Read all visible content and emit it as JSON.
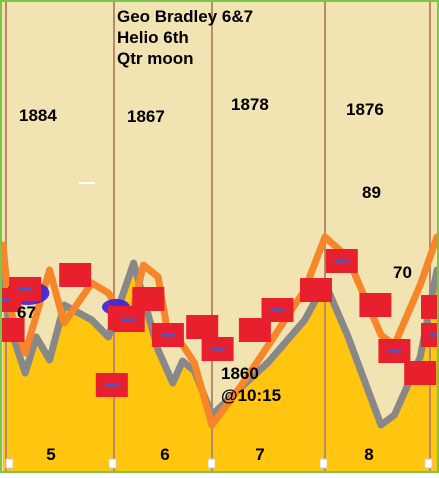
{
  "header": {
    "line1": "Geo Bradley 6&7",
    "line2": "Helio 6th",
    "line3": "Qtr moon"
  },
  "colors": {
    "sky": "#f2e4b2",
    "fill": "#ffc50f",
    "gray_line": "#888888",
    "orange_line": "#f7862a",
    "marker": "#e81f2c",
    "marker_dash": "#4b57c9",
    "purple_blob": "#3a1fe0",
    "divider": "#b98a6a",
    "frame": "#7ac64b"
  },
  "chart_data": {
    "type": "line",
    "title": "",
    "categories": [
      "5",
      "6",
      "7",
      "8"
    ],
    "period_labels": [
      "1884",
      "1867",
      "1878",
      "1876"
    ],
    "annotations": [
      {
        "label": "67"
      },
      {
        "label": "1860"
      },
      {
        "label": "@10:15"
      },
      {
        "label": "89"
      },
      {
        "label": "70"
      }
    ],
    "series": [
      {
        "x": [
          0.0,
          0.05,
          0.2,
          0.3,
          0.42,
          0.55,
          0.8,
          0.95,
          1.2,
          1.45,
          1.6,
          1.7,
          1.82,
          2.0,
          2.25,
          2.5,
          2.82,
          3.0,
          3.2,
          3.5,
          3.62,
          3.85,
          4.0
        ],
        "values": [
          2,
          -58,
          -108,
          -72,
          -95,
          -40,
          -55,
          -72,
          2,
          -85,
          -118,
          -96,
          -106,
          -150,
          -123,
          -97,
          -55,
          -18,
          -70,
          -160,
          -150,
          -92,
          -5
        ]
      },
      {
        "x": [
          0.0,
          0.05,
          0.2,
          0.42,
          0.55,
          0.8,
          0.95,
          1.15,
          1.3,
          1.45,
          1.55,
          1.7,
          1.82,
          2.0,
          2.25,
          2.5,
          2.82,
          3.0,
          3.2,
          3.5,
          3.62,
          3.85,
          4.0
        ],
        "values": [
          20,
          -40,
          -88,
          -5,
          -58,
          -18,
          -28,
          -62,
          0,
          -12,
          -68,
          -80,
          -98,
          -160,
          -122,
          -80,
          -25,
          28,
          8,
          -70,
          -80,
          -20,
          28
        ]
      }
    ],
    "markers": [
      {
        "x": 0.02,
        "y": -35
      },
      {
        "x": 0.05,
        "y": -65
      },
      {
        "x": 0.2,
        "y": -24
      },
      {
        "x": 0.65,
        "y": -10
      },
      {
        "x": 0.98,
        "y": -120
      },
      {
        "x": 1.1,
        "y": -53
      },
      {
        "x": 1.15,
        "y": -55
      },
      {
        "x": 1.35,
        "y": -34
      },
      {
        "x": 1.55,
        "y": -70
      },
      {
        "x": 1.9,
        "y": -62
      },
      {
        "x": 2.05,
        "y": -84
      },
      {
        "x": 2.38,
        "y": -65
      },
      {
        "x": 2.58,
        "y": -45
      },
      {
        "x": 2.92,
        "y": -25
      },
      {
        "x": 3.15,
        "y": 4
      },
      {
        "x": 3.45,
        "y": -40
      },
      {
        "x": 3.62,
        "y": -86
      },
      {
        "x": 3.85,
        "y": -108
      },
      {
        "x": 4.0,
        "y": -70
      },
      {
        "x": 4.0,
        "y": -42
      }
    ],
    "ylim": [
      -200,
      120
    ],
    "xlim": [
      0,
      4
    ]
  }
}
